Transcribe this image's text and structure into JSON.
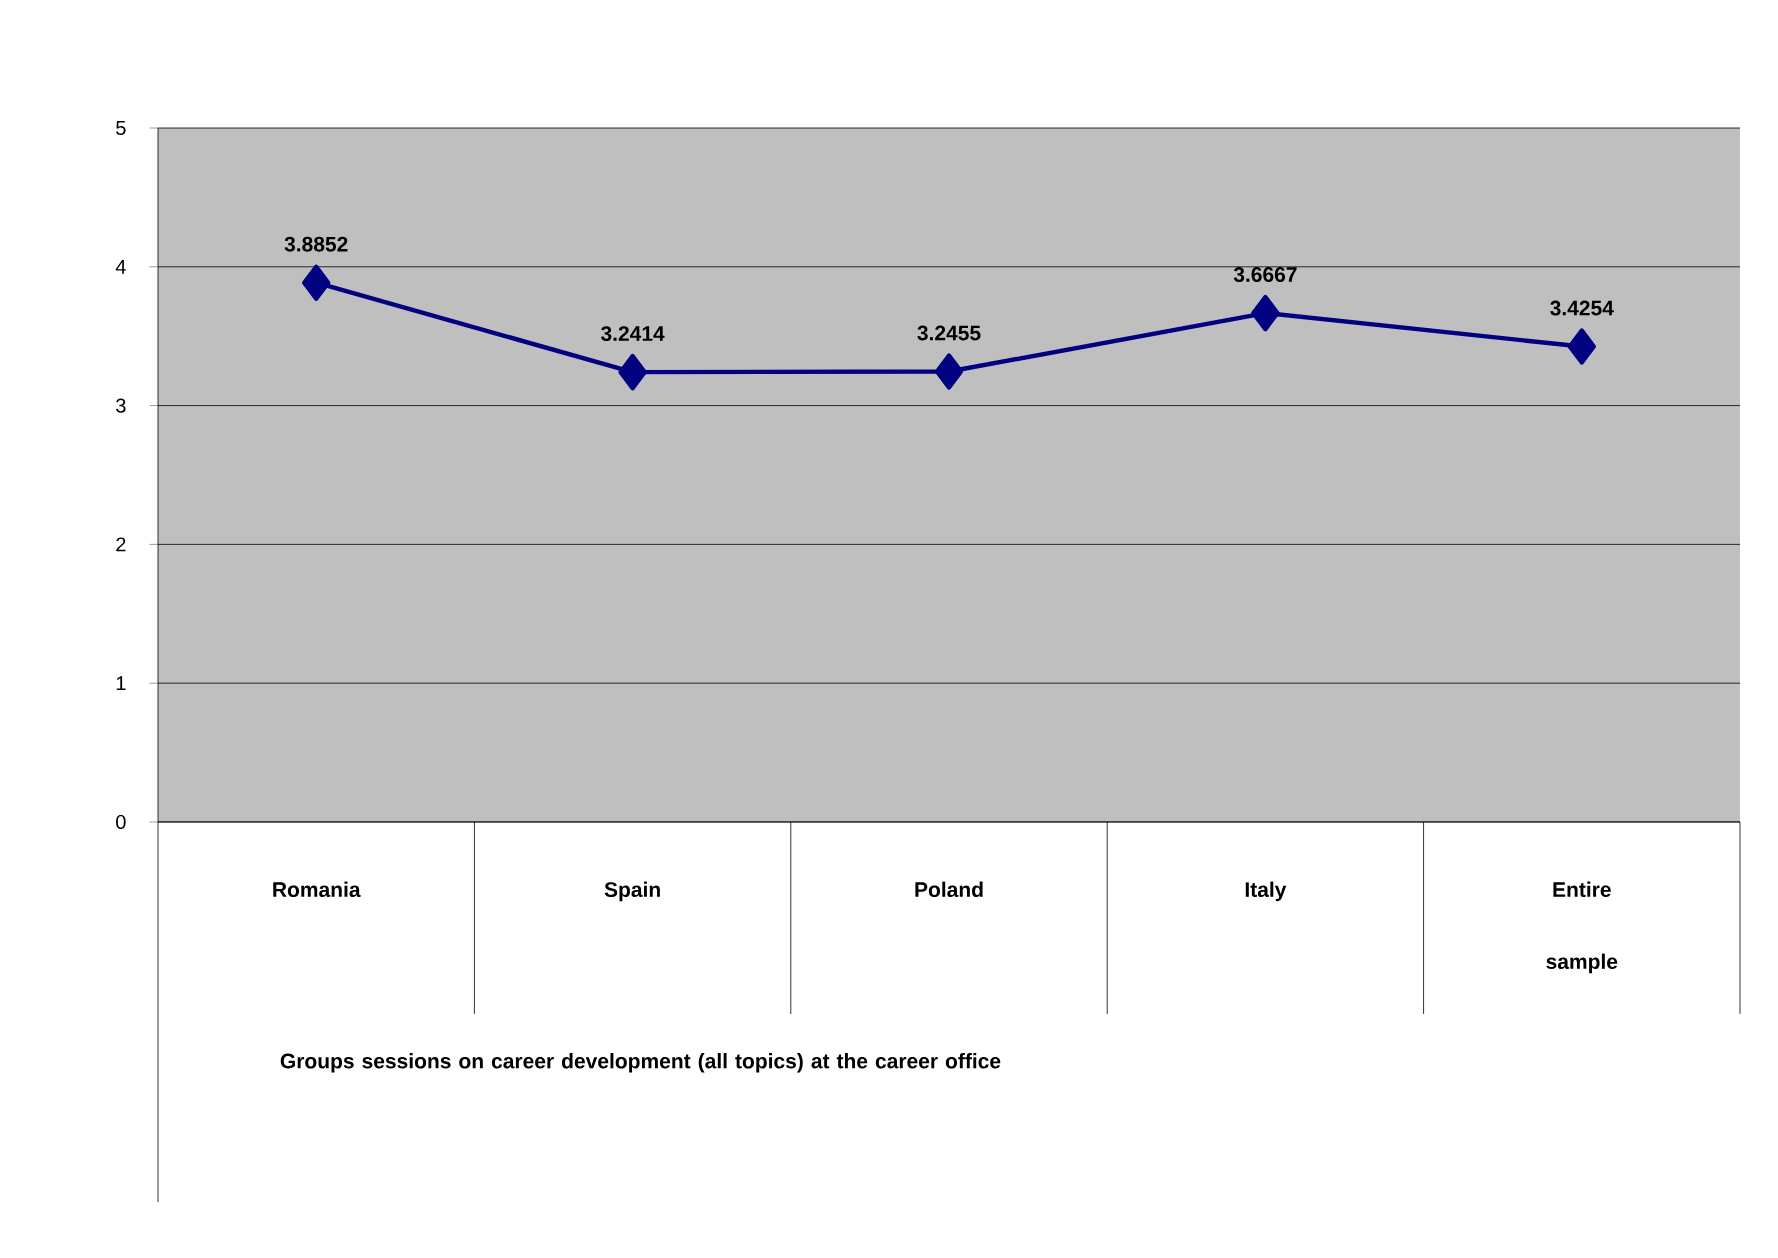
{
  "chart_data": {
    "type": "line",
    "annotations": [
      "Groups sessions on career development (all topics) at the career office"
    ],
    "categories": [
      "Romania",
      "Spain",
      "Poland",
      "Italy",
      "Entire sample"
    ],
    "values": [
      3.8852,
      3.2414,
      3.2455,
      3.6667,
      3.4254
    ],
    "color": "#000080",
    "marker": "diamond",
    "line_style": "solid",
    "ylim": [
      0,
      5
    ],
    "yticks": [
      0,
      1,
      2,
      3,
      4,
      5
    ],
    "grid": "y",
    "data_labels": true
  }
}
